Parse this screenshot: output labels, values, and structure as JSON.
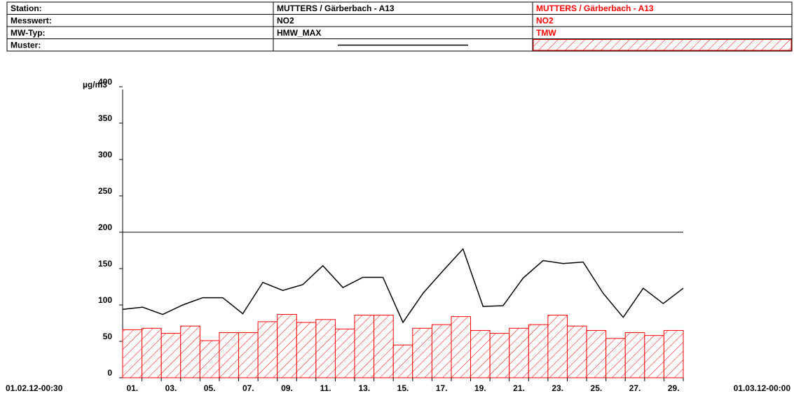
{
  "table": {
    "rows": [
      [
        "Station:",
        "MUTTERS / Gärberbach - A13",
        "MUTTERS / Gärberbach - A13"
      ],
      [
        "Messwert:",
        "NO2",
        "NO2"
      ],
      [
        "MW-Typ:",
        "HMW_MAX",
        "TMW"
      ],
      [
        "Muster:"
      ]
    ]
  },
  "chart_data": {
    "type": "bar",
    "y_label": "µg/m3",
    "start_label": "01.02.12-00:30",
    "end_label": "01.03.12-00:00",
    "categories": [
      "01.",
      null,
      "03.",
      null,
      "05.",
      null,
      "07.",
      null,
      "09.",
      null,
      "11.",
      null,
      "13.",
      null,
      "15.",
      null,
      "17.",
      null,
      "19.",
      null,
      "21.",
      null,
      "23.",
      null,
      "25.",
      null,
      "27.",
      null,
      "29."
    ],
    "series": [
      {
        "type": "bar",
        "color": "#ff0000",
        "values": [
          66,
          68,
          61,
          71,
          51,
          62,
          62,
          77,
          87,
          76,
          80,
          67,
          86,
          86,
          45,
          68,
          73,
          84,
          65,
          61,
          68,
          73,
          86,
          71,
          65,
          54,
          62,
          58,
          65
        ]
      },
      {
        "type": "line",
        "color": "#000000",
        "values": [
          94,
          97,
          87,
          100,
          110,
          110,
          88,
          131,
          120,
          128,
          154,
          124,
          138,
          138,
          76,
          116,
          147,
          177,
          98,
          99,
          137,
          161,
          157,
          159,
          116,
          83,
          123,
          102,
          123
        ]
      }
    ],
    "reference_line": 200,
    "ylim": [
      0,
      400
    ],
    "yticks": [
      0,
      50,
      100,
      150,
      200,
      250,
      300,
      350,
      400
    ]
  }
}
